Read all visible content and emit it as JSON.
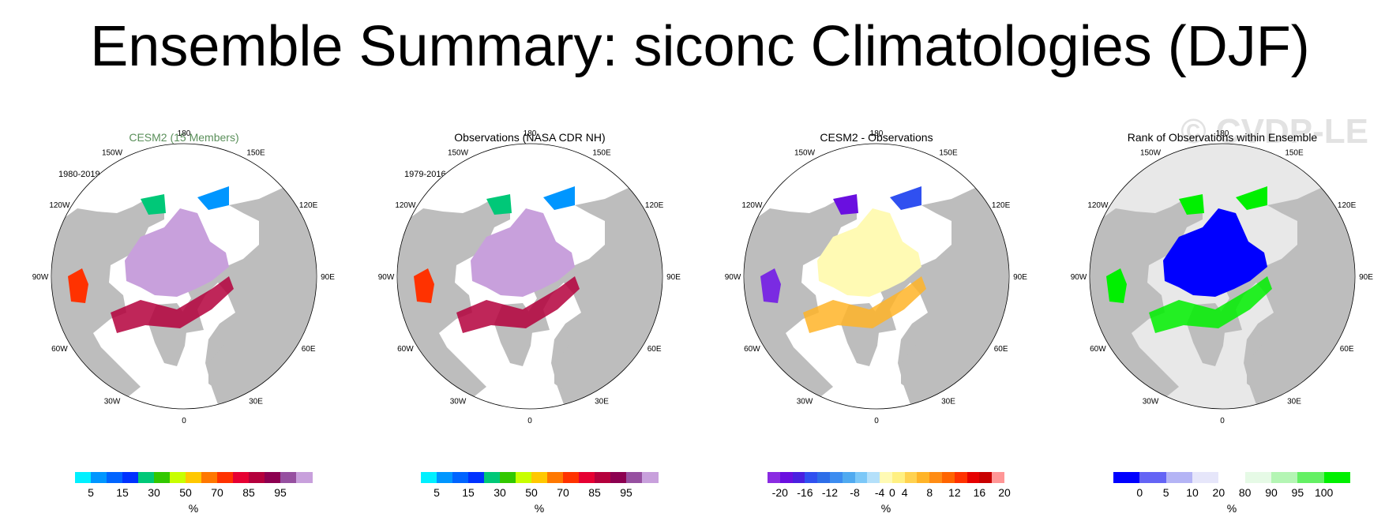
{
  "title": "Ensemble Summary: siconc Climatologies (DJF)",
  "watermark": "© CVDP-LE",
  "lon_labels": [
    "180",
    "150E",
    "120E",
    "90E",
    "60E",
    "30E",
    "0",
    "30W",
    "60W",
    "90W",
    "120W",
    "150W"
  ],
  "units": "%",
  "colors": {
    "land": "#bdbdbd",
    "ocean": "#ffffff"
  },
  "panels": [
    {
      "title": "CESM2 (15 Members)",
      "title_color": "#5a8f5a",
      "period": "1980-2019",
      "type": "concentration",
      "colorbar": {
        "colors": [
          "#00f0ff",
          "#0096ff",
          "#0064ff",
          "#0032ff",
          "#00c878",
          "#32c800",
          "#c8ff00",
          "#ffc800",
          "#ff7800",
          "#ff3200",
          "#e60032",
          "#b4003c",
          "#8c0050",
          "#9650a0",
          "#c8a0dc"
        ],
        "ticks": [
          "5",
          "15",
          "30",
          "50",
          "70",
          "85",
          "95"
        ]
      }
    },
    {
      "title": "Observations (NASA CDR NH)",
      "title_color": "#000000",
      "period": "1979-2016",
      "type": "concentration",
      "colorbar": {
        "colors": [
          "#00f0ff",
          "#0096ff",
          "#0064ff",
          "#0032ff",
          "#00c878",
          "#32c800",
          "#c8ff00",
          "#ffc800",
          "#ff7800",
          "#ff3200",
          "#e60032",
          "#b4003c",
          "#8c0050",
          "#9650a0",
          "#c8a0dc"
        ],
        "ticks": [
          "5",
          "15",
          "30",
          "50",
          "70",
          "85",
          "95"
        ]
      }
    },
    {
      "title": "CESM2 - Observations",
      "title_color": "#000000",
      "period": "",
      "type": "difference",
      "colorbar": {
        "colors": [
          "#8a2be2",
          "#6a0fe0",
          "#4a20e0",
          "#3050f0",
          "#2d6ee8",
          "#3c8cf0",
          "#50aaf0",
          "#7cc8f8",
          "#b4e0fa",
          "#fffab4",
          "#fff082",
          "#ffd250",
          "#ffb428",
          "#ff8c14",
          "#ff6400",
          "#ff3200",
          "#e60000",
          "#c80000",
          "#ff9696"
        ],
        "ticks": [
          "-20",
          "-16",
          "-12",
          "-8",
          "-4",
          "0",
          "4",
          "8",
          "12",
          "16",
          "20"
        ]
      }
    },
    {
      "title": "Rank of Observations within Ensemble",
      "title_color": "#000000",
      "period": "",
      "type": "rank",
      "colorbar": {
        "colors": [
          "#0000ff",
          "#6464f5",
          "#b4b4f5",
          "#e6e6fa",
          "#ffffff",
          "#e6fae6",
          "#b4f5b4",
          "#64f064",
          "#00f000"
        ],
        "ticks": [
          "0",
          "5",
          "10",
          "20",
          "80",
          "90",
          "95",
          "100"
        ]
      }
    }
  ]
}
